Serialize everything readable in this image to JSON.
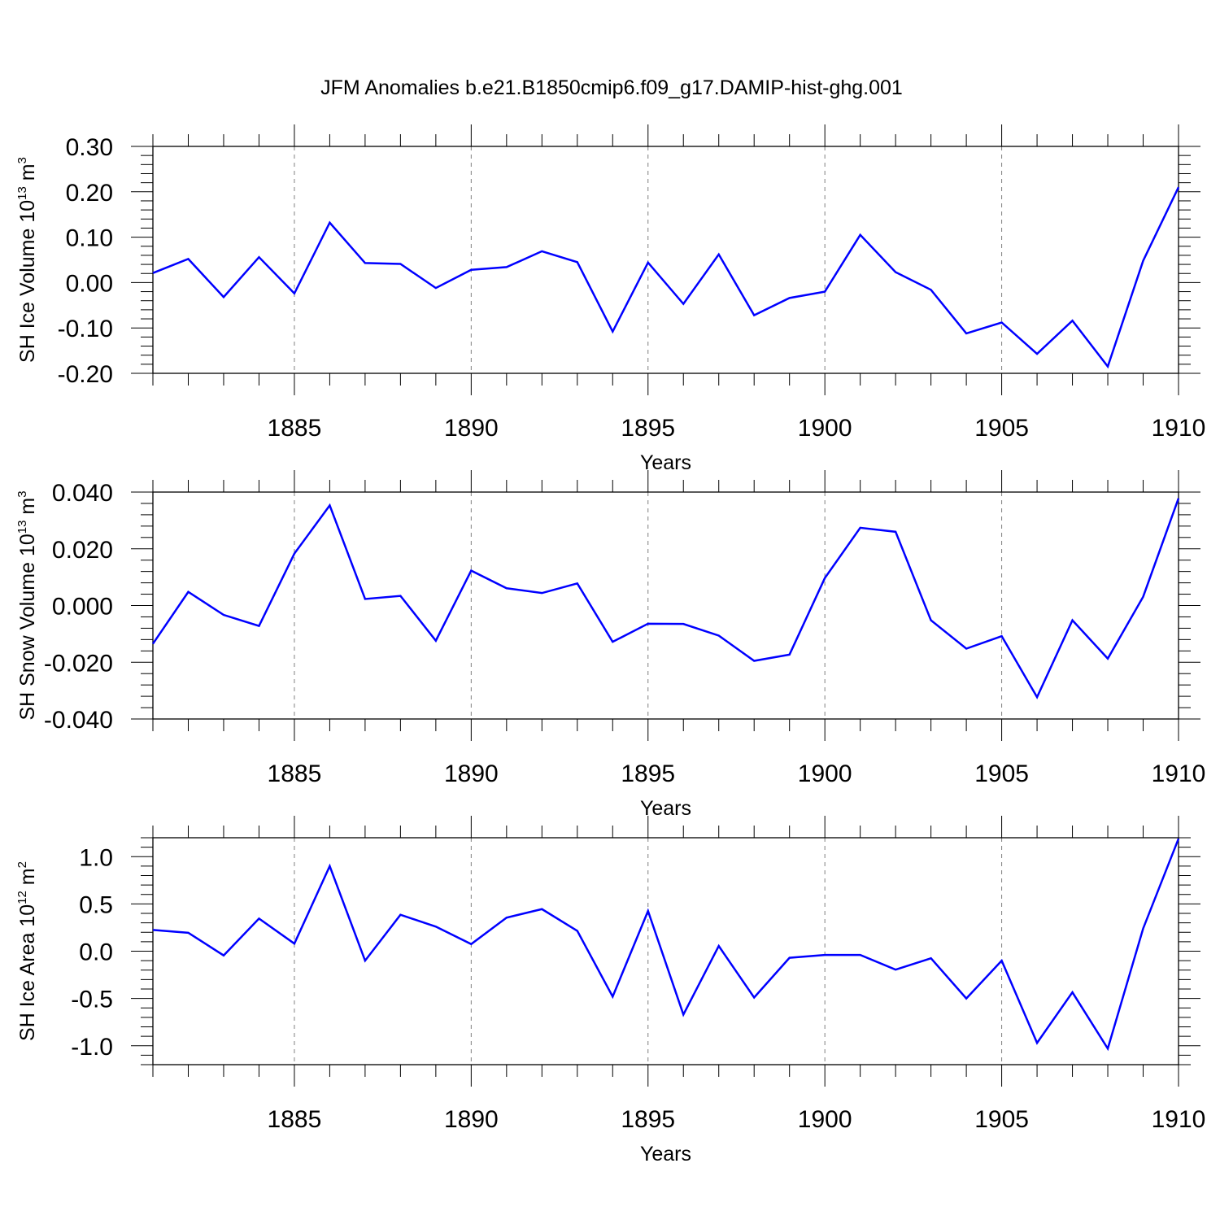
{
  "figure_title": "JFM Anomalies b.e21.B1850cmip6.f09_g17.DAMIP-hist-ghg.001",
  "colors": {
    "line": "#0000ff",
    "axis": "#000000",
    "grid": "#808080"
  },
  "chart_data": [
    {
      "type": "line",
      "title": "",
      "xlabel": "Years",
      "ylabel": "SH Ice Volume 10^13 m^3",
      "ylabel_parts": {
        "base": "SH Ice Volume 10",
        "exp": "13",
        "unit": " m",
        "unit_exp": "3"
      },
      "xlim": [
        1881,
        1910
      ],
      "ylim": [
        -0.2,
        0.3
      ],
      "x_ticks": [
        1885,
        1890,
        1895,
        1900,
        1905,
        1910
      ],
      "y_ticks": [
        -0.2,
        -0.1,
        0.0,
        0.1,
        0.2,
        0.3
      ],
      "y_tick_labels": [
        "-0.20",
        "-0.10",
        "0.00",
        "0.10",
        "0.20",
        "0.30"
      ],
      "grid": "vertical dashed at major x ticks",
      "series": [
        {
          "name": "SH Ice Volume",
          "x": [
            1881,
            1882,
            1883,
            1884,
            1885,
            1886,
            1887,
            1888,
            1889,
            1890,
            1891,
            1892,
            1893,
            1894,
            1895,
            1896,
            1897,
            1898,
            1899,
            1900,
            1901,
            1902,
            1903,
            1904,
            1905,
            1906,
            1907,
            1908,
            1909,
            1910
          ],
          "values": [
            0.021,
            0.052,
            -0.032,
            0.056,
            -0.024,
            0.132,
            0.043,
            0.041,
            -0.012,
            0.028,
            0.034,
            0.069,
            0.045,
            -0.108,
            0.044,
            -0.047,
            0.062,
            -0.072,
            -0.034,
            -0.02,
            0.105,
            0.023,
            -0.016,
            -0.112,
            -0.088,
            -0.157,
            -0.084,
            -0.185,
            0.048,
            0.21
          ]
        }
      ]
    },
    {
      "type": "line",
      "title": "",
      "xlabel": "Years",
      "ylabel": "SH Snow Volume 10^13 m^3",
      "ylabel_parts": {
        "base": "SH Snow Volume 10",
        "exp": "13",
        "unit": " m",
        "unit_exp": "3"
      },
      "xlim": [
        1881,
        1910
      ],
      "ylim": [
        -0.04,
        0.04
      ],
      "x_ticks": [
        1885,
        1890,
        1895,
        1900,
        1905,
        1910
      ],
      "y_ticks": [
        -0.04,
        -0.02,
        0.0,
        0.02,
        0.04
      ],
      "y_tick_labels": [
        "-0.040",
        "-0.020",
        "0.000",
        "0.020",
        "0.040"
      ],
      "grid": "vertical dashed at major x ticks",
      "series": [
        {
          "name": "SH Snow Volume",
          "x": [
            1881,
            1882,
            1883,
            1884,
            1885,
            1886,
            1887,
            1888,
            1889,
            1890,
            1891,
            1892,
            1893,
            1894,
            1895,
            1896,
            1897,
            1898,
            1899,
            1900,
            1901,
            1902,
            1903,
            1904,
            1905,
            1906,
            1907,
            1908,
            1909,
            1910
          ],
          "values": [
            -0.0135,
            0.0048,
            -0.0033,
            -0.0072,
            0.0183,
            0.0353,
            0.0023,
            0.0034,
            -0.0124,
            0.0123,
            0.0061,
            0.0044,
            0.0078,
            -0.0128,
            -0.0064,
            -0.0065,
            -0.0106,
            -0.0195,
            -0.0173,
            0.0097,
            0.0274,
            0.026,
            -0.0052,
            -0.0152,
            -0.0108,
            -0.0323,
            -0.0052,
            -0.0187,
            0.0031,
            0.0378
          ]
        }
      ]
    },
    {
      "type": "line",
      "title": "",
      "xlabel": "Years",
      "ylabel": "SH Ice Area 10^12 m^2",
      "ylabel_parts": {
        "base": "SH Ice Area 10",
        "exp": "12",
        "unit": " m",
        "unit_exp": "2"
      },
      "xlim": [
        1881,
        1910
      ],
      "ylim": [
        -1.2,
        1.2
      ],
      "x_ticks": [
        1885,
        1890,
        1895,
        1900,
        1905,
        1910
      ],
      "y_ticks": [
        -1.0,
        -0.5,
        0.0,
        0.5,
        1.0
      ],
      "y_tick_labels": [
        "-1.0",
        "-0.5",
        "0.0",
        "0.5",
        "1.0"
      ],
      "grid": "vertical dashed at major x ticks",
      "series": [
        {
          "name": "SH Ice Area",
          "x": [
            1881,
            1882,
            1883,
            1884,
            1885,
            1886,
            1887,
            1888,
            1889,
            1890,
            1891,
            1892,
            1893,
            1894,
            1895,
            1896,
            1897,
            1898,
            1899,
            1900,
            1901,
            1902,
            1903,
            1904,
            1905,
            1906,
            1907,
            1908,
            1909,
            1910
          ],
          "values": [
            0.225,
            0.195,
            -0.045,
            0.345,
            0.08,
            0.9,
            -0.1,
            0.385,
            0.26,
            0.075,
            0.355,
            0.445,
            0.215,
            -0.48,
            0.425,
            -0.67,
            0.055,
            -0.49,
            -0.07,
            -0.04,
            -0.04,
            -0.195,
            -0.075,
            -0.5,
            -0.1,
            -0.97,
            -0.435,
            -1.03,
            0.24,
            1.19
          ]
        }
      ]
    }
  ]
}
